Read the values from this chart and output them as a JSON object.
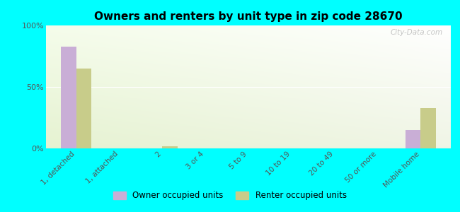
{
  "title": "Owners and renters by unit type in zip code 28670",
  "categories": [
    "1, detached",
    "1, attached",
    "2",
    "3 or 4",
    "5 to 9",
    "10 to 19",
    "20 to 49",
    "50 or more",
    "Mobile home"
  ],
  "owner_values": [
    83,
    0,
    0,
    0,
    0,
    0,
    0,
    0,
    15
  ],
  "renter_values": [
    65,
    0,
    2,
    0,
    0,
    0,
    0,
    0,
    33
  ],
  "owner_color": "#c9aed6",
  "renter_color": "#c8cc8a",
  "background_plot_top": "#f0faf0",
  "background_plot_bottom": "#d8edcc",
  "background_fig": "#00ffff",
  "ylim": [
    0,
    100
  ],
  "yticks": [
    0,
    50,
    100
  ],
  "ytick_labels": [
    "0%",
    "50%",
    "100%"
  ],
  "bar_width": 0.35,
  "legend_owner": "Owner occupied units",
  "legend_renter": "Renter occupied units",
  "watermark": "City-Data.com"
}
